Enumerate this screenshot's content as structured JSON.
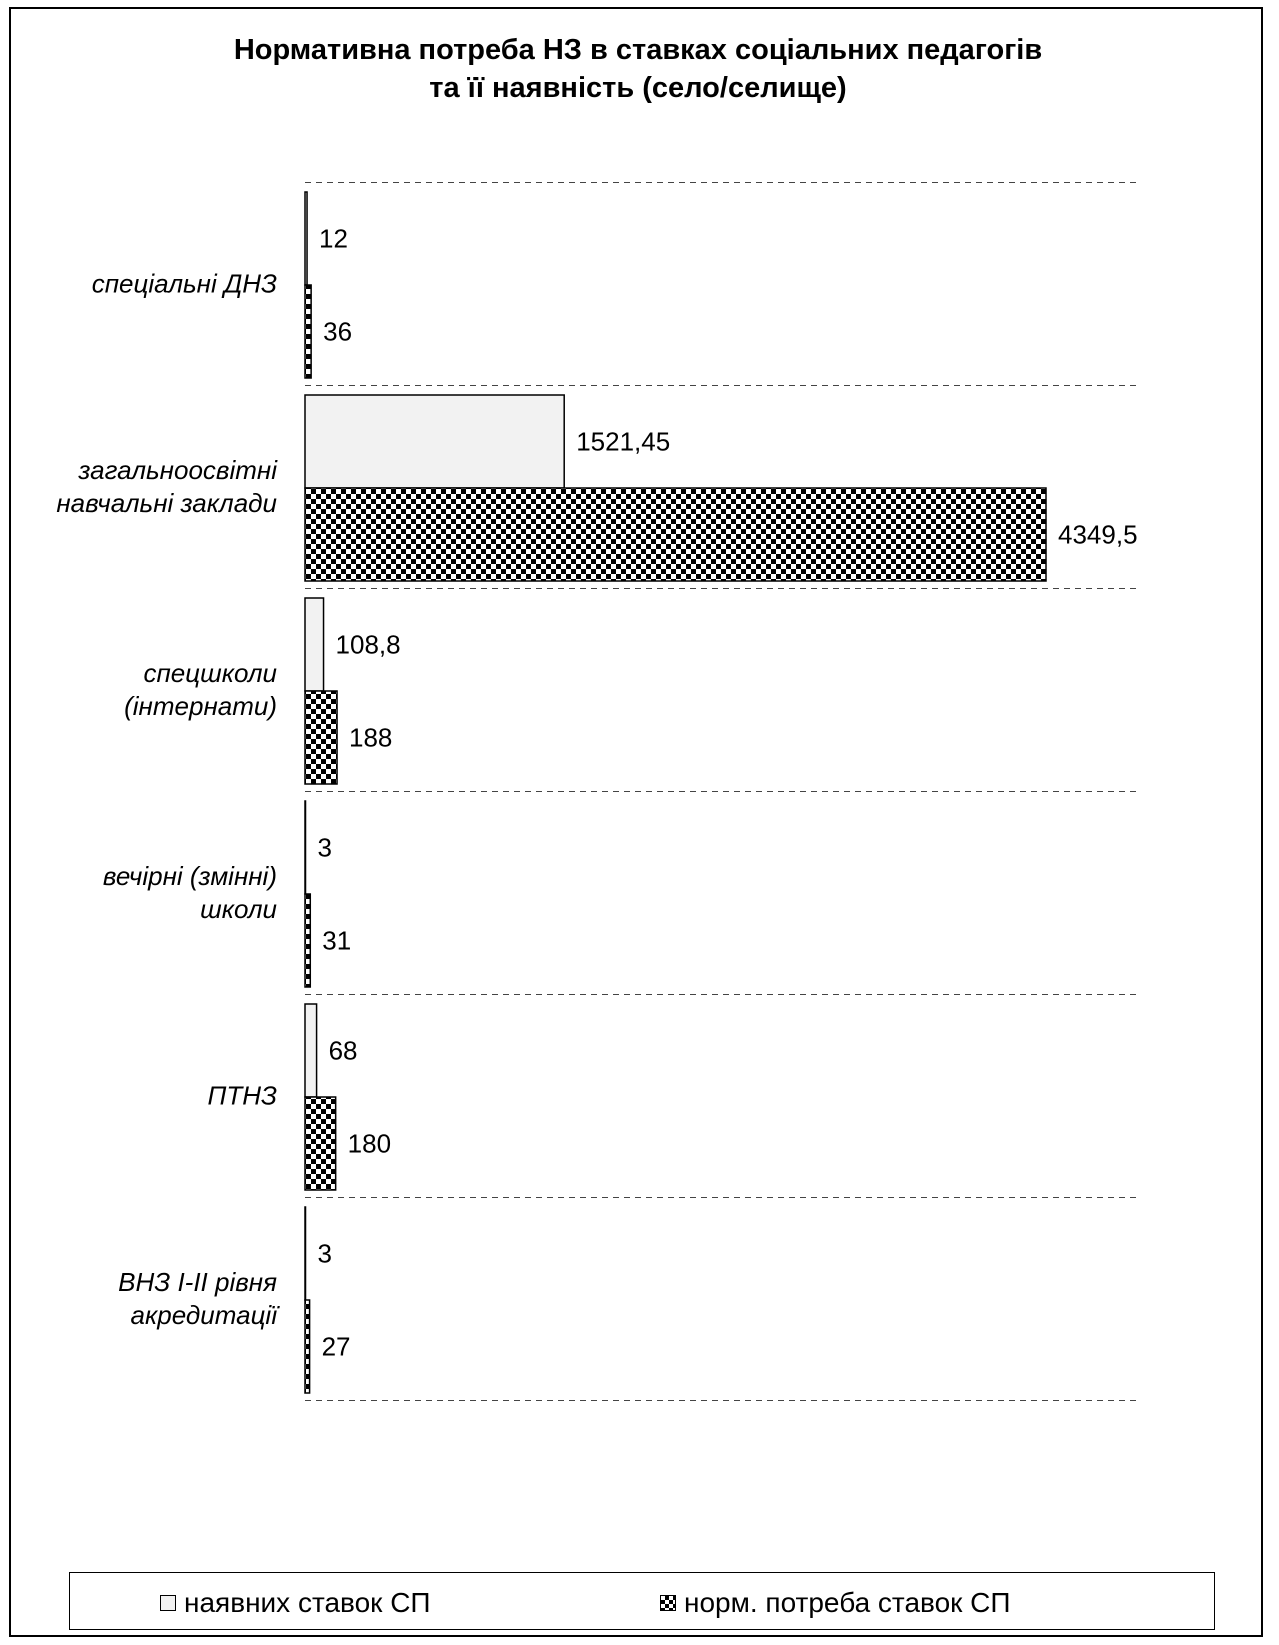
{
  "chart_data": {
    "type": "bar",
    "orientation": "horizontal",
    "title": "Нормативна потреба НЗ в ставках соціальних педагогів\nта її наявність (село/селище)",
    "categories": [
      "спеціальні  ДНЗ",
      "загальноосвітні\nнавчальні заклади",
      "спецшколи\n(інтернати)",
      "вечірні (змінні)\nшколи",
      "ПТНЗ",
      "ВНЗ І-ІІ рівня\nакредитації"
    ],
    "series": [
      {
        "name": "наявних ставок СП",
        "values": [
          12,
          1521.45,
          108.8,
          3,
          68,
          3
        ],
        "labels": [
          "12",
          "1521,45",
          "108,8",
          "3",
          "68",
          "3"
        ],
        "color": "#f2f2f2",
        "pattern": "solid"
      },
      {
        "name": "норм. потреба ставок СП",
        "values": [
          36,
          4349.5,
          188,
          31,
          180,
          27
        ],
        "labels": [
          "36",
          "4349,5",
          "188",
          "31",
          "180",
          "27"
        ],
        "color": "#000000",
        "pattern": "checker"
      }
    ],
    "xlim": [
      0,
      5000
    ],
    "grid": true,
    "legend_position": "bottom"
  }
}
